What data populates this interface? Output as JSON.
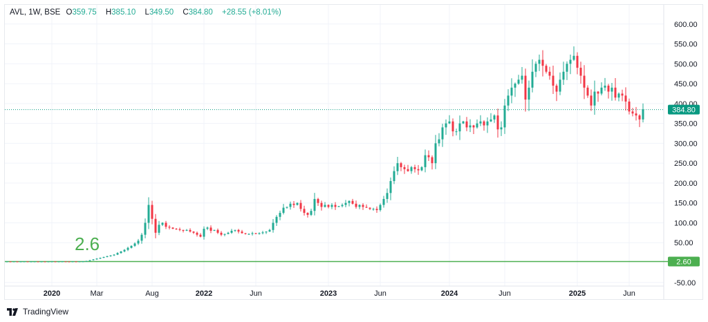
{
  "header": {
    "symbol": "AVL, 1W, BSE",
    "open_label": "O",
    "open": "359.75",
    "high_label": "H",
    "high": "385.10",
    "low_label": "L",
    "low": "349.50",
    "close_label": "C",
    "close": "384.80",
    "change": "+28.55 (+8.01%)"
  },
  "footer": {
    "brand": "TradingView"
  },
  "colors": {
    "up": "#22ab94",
    "down": "#f23645",
    "line": "#4caf50",
    "price_tag": "#089981",
    "grid": "#f0f3fa",
    "text": "#131722"
  },
  "chart_data": {
    "type": "candlestick",
    "title": "AVL, 1W, BSE",
    "ylim": [
      -50,
      610
    ],
    "y_ticks": [
      "600.00",
      "550.00",
      "500.00",
      "450.00",
      "400.00",
      "350.00",
      "300.00",
      "250.00",
      "200.00",
      "150.00",
      "100.00",
      "50.00",
      "-50.00"
    ],
    "y_tick_values": [
      600,
      550,
      500,
      450,
      400,
      350,
      300,
      250,
      200,
      150,
      100,
      50,
      -50
    ],
    "x_labels": [
      "2020",
      "Mar",
      "Aug",
      "2022",
      "Jun",
      "2023",
      "Jun",
      "2024",
      "Jun",
      "2025",
      "Jun"
    ],
    "x_label_positions_index": [
      13,
      26,
      42,
      57,
      72,
      93,
      108,
      128,
      144,
      165,
      180
    ],
    "closes": [
      2.6,
      2.5,
      2.7,
      2.4,
      2.6,
      2.8,
      2.5,
      2.6,
      2.7,
      2.5,
      2.6,
      2.4,
      2.6,
      2.7,
      2.5,
      2.6,
      2.8,
      2.6,
      2.5,
      2.7,
      2.6,
      2.8,
      2.9,
      4,
      6,
      8,
      10,
      12,
      14,
      16,
      18,
      20,
      24,
      28,
      32,
      37,
      42,
      48,
      55,
      70,
      100,
      145,
      110,
      75,
      95,
      100,
      90,
      88,
      85,
      84,
      82,
      80,
      82,
      78,
      75,
      70,
      65,
      85,
      88,
      80,
      82,
      75,
      70,
      72,
      75,
      80,
      82,
      78,
      74,
      72,
      72,
      74,
      72,
      74,
      76,
      78,
      82,
      100,
      115,
      125,
      138,
      140,
      148,
      145,
      150,
      135,
      125,
      120,
      130,
      160,
      150,
      140,
      145,
      140,
      145,
      140,
      142,
      145,
      150,
      155,
      148,
      140,
      145,
      140,
      138,
      135,
      135,
      132,
      145,
      160,
      175,
      205,
      230,
      250,
      240,
      235,
      230,
      240,
      235,
      232,
      240,
      270,
      265,
      250,
      300,
      310,
      340,
      350,
      355,
      330,
      330,
      350,
      355,
      340,
      345,
      340,
      350,
      355,
      345,
      355,
      360,
      370,
      335,
      340,
      395,
      420,
      440,
      450,
      460,
      470,
      410,
      440,
      480,
      500,
      510,
      495,
      480,
      470,
      445,
      430,
      460,
      480,
      500,
      510,
      520,
      490,
      470,
      440,
      420,
      395,
      430,
      425,
      440,
      445,
      430,
      440,
      415,
      425,
      420,
      405,
      380,
      375,
      370,
      360,
      385
    ],
    "last_price": "384.80",
    "horizontal_line": {
      "value": 2.6,
      "label": "2.60",
      "annotation": "2.6"
    }
  }
}
